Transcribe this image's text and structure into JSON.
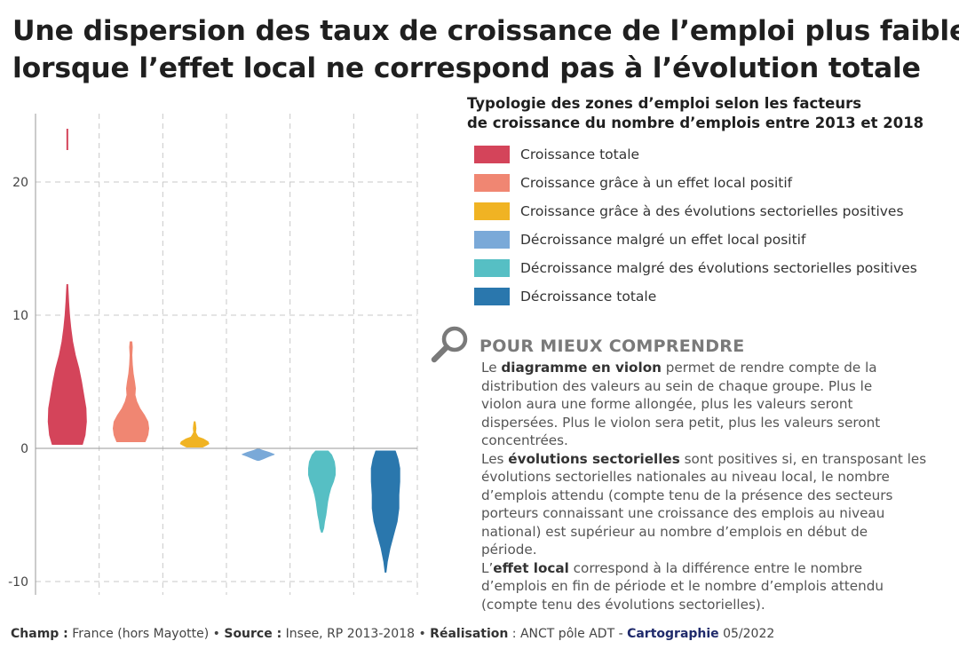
{
  "title": {
    "line1": "Une dispersion des taux de croissance de l’emploi plus faible",
    "line2": "lorsque l’effet local ne correspond pas à l’évolution totale"
  },
  "legend": {
    "title_line1": "Typologie des zones d’emploi selon les facteurs",
    "title_line2": "de croissance du nombre d’emplois entre 2013 et 2018"
  },
  "chart_data": {
    "type": "violin",
    "ylim": [
      -10.5,
      25
    ],
    "yticks": [
      -10,
      0,
      10,
      20
    ],
    "ytick_labels": [
      "-10",
      "0",
      "10",
      "20"
    ],
    "grid": true,
    "legend_position": "right",
    "series": [
      {
        "name": "Croissance totale",
        "color": "#d4445a",
        "profile": [
          [
            0.3,
            34
          ],
          [
            1,
            40
          ],
          [
            2,
            43
          ],
          [
            3,
            42
          ],
          [
            4,
            37
          ],
          [
            5,
            32
          ],
          [
            6,
            26
          ],
          [
            7,
            18
          ],
          [
            8,
            12
          ],
          [
            9,
            8
          ],
          [
            10,
            5
          ],
          [
            11,
            3
          ],
          [
            12.3,
            1
          ]
        ],
        "outliers": [
          [
            22.4,
            24
          ]
        ]
      },
      {
        "name": "Croissance grâce à un effet local positif",
        "color": "#f08672",
        "profile": [
          [
            0.5,
            32
          ],
          [
            1,
            38
          ],
          [
            1.5,
            40
          ],
          [
            2,
            38
          ],
          [
            2.5,
            30
          ],
          [
            3,
            20
          ],
          [
            3.5,
            13
          ],
          [
            4,
            9
          ],
          [
            4.5,
            10
          ],
          [
            5,
            8
          ],
          [
            5.6,
            5
          ],
          [
            6.3,
            3
          ],
          [
            7,
            2
          ],
          [
            7.6,
            3
          ],
          [
            8,
            2
          ]
        ]
      },
      {
        "name": "Croissance grâce à des évolutions sectorielles positives",
        "color": "#f0b323",
        "profile": [
          [
            0.1,
            18
          ],
          [
            0.2,
            24
          ],
          [
            0.35,
            32
          ],
          [
            0.5,
            30
          ],
          [
            0.7,
            20
          ],
          [
            0.85,
            8
          ],
          [
            1,
            5
          ],
          [
            1.2,
            2
          ],
          [
            1.5,
            3
          ],
          [
            1.8,
            2
          ],
          [
            2,
            1
          ]
        ]
      },
      {
        "name": "Décroissance malgré un effet local positif",
        "color": "#7aa9d8",
        "profile": [
          [
            -0.9,
            2
          ],
          [
            -0.8,
            10
          ],
          [
            -0.6,
            24
          ],
          [
            -0.45,
            36
          ],
          [
            -0.3,
            24
          ],
          [
            -0.15,
            10
          ],
          [
            -0.05,
            2
          ]
        ]
      },
      {
        "name": "Décroissance malgré des évolutions sectorielles positives",
        "color": "#56bfc4",
        "profile": [
          [
            -0.2,
            14
          ],
          [
            -0.5,
            22
          ],
          [
            -1,
            28
          ],
          [
            -1.5,
            30
          ],
          [
            -2,
            30
          ],
          [
            -2.5,
            26
          ],
          [
            -3,
            20
          ],
          [
            -3.5,
            16
          ],
          [
            -4,
            13
          ],
          [
            -4.5,
            11
          ],
          [
            -5,
            9
          ],
          [
            -5.5,
            6
          ],
          [
            -6,
            4
          ],
          [
            -6.3,
            1
          ]
        ]
      },
      {
        "name": "Décroissance totale",
        "color": "#2a77ad",
        "profile": [
          [
            -0.2,
            22
          ],
          [
            -0.8,
            28
          ],
          [
            -1.5,
            32
          ],
          [
            -2.5,
            32
          ],
          [
            -3.5,
            30
          ],
          [
            -4.5,
            30
          ],
          [
            -5.5,
            26
          ],
          [
            -6.5,
            18
          ],
          [
            -7.5,
            10
          ],
          [
            -8.5,
            4
          ],
          [
            -9.3,
            1
          ]
        ]
      }
    ]
  },
  "explain": {
    "title": "POUR MIEUX COMPRENDRE",
    "p1": {
      "pre": "Le ",
      "bold": "diagramme en violon",
      "l1_rest": " permet de rendre compte de la",
      "l2": "distribution des valeurs au sein de chaque groupe. Plus le",
      "l3": "violon aura une forme allongée, plus les valeurs seront",
      "l4": "dispersées. Plus le violon sera petit, plus les valeurs seront",
      "l5": "concentrées."
    },
    "p2": {
      "pre": "Les ",
      "bold": "évolutions sectorielles",
      "l1_rest": " sont positives si, en transposant les",
      "l2": "évolutions sectorielles nationales au niveau local, le nombre",
      "l3": "d’emplois attendu (compte tenu de la présence des secteurs",
      "l4": "porteurs connaissant une croissance des emplois au niveau",
      "l5": "national)  est supérieur au nombre d’emplois en début de",
      "l6": "période."
    },
    "p3": {
      "pre": "L’",
      "bold": "effet local",
      "l1_rest": " correspond à la différence entre le nombre",
      "l2": "d’emplois en fin de période et le nombre d’emplois attendu",
      "l3": "(compte tenu des évolutions sectorielles)."
    }
  },
  "footer": {
    "champ_label": "Champ :",
    "champ_value": " France (hors Mayotte) • ",
    "source_label": "Source :",
    "source_value": " Insee, RP 2013-2018 • ",
    "real_label": "Réalisation",
    "real_value": " : ANCT pôle ADT - ",
    "brand": "Cartographie",
    "date": " 05/2022"
  }
}
